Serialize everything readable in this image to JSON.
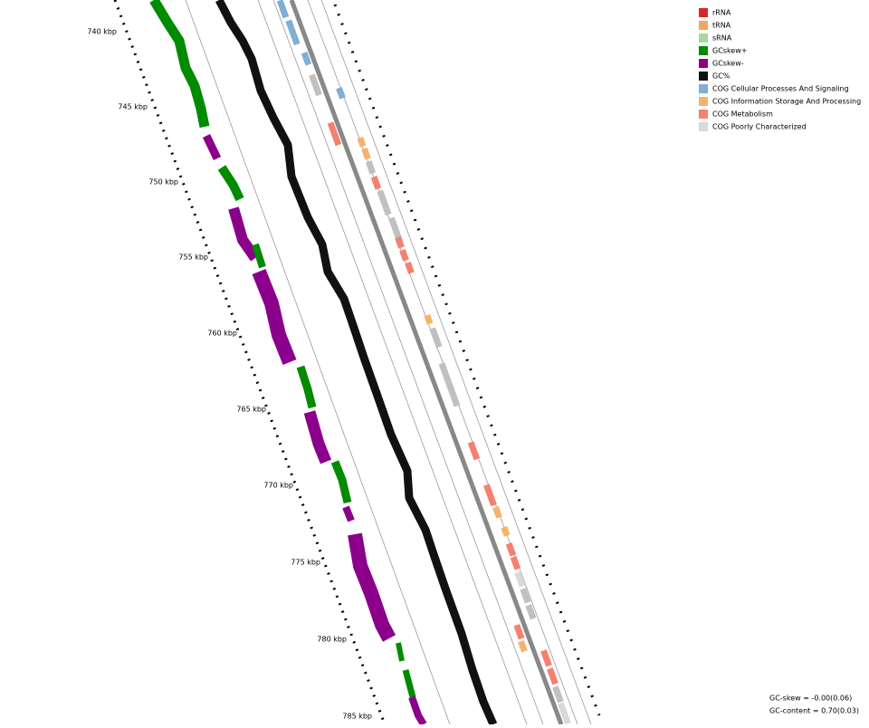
{
  "legend": [
    {
      "name": "rRNA",
      "color": "#d62728"
    },
    {
      "name": "tRNA",
      "color": "#f4a460"
    },
    {
      "name": "sRNA",
      "color": "#a8d8a0"
    },
    {
      "name": "GCskew+",
      "color": "#008b00"
    },
    {
      "name": "GCskew-",
      "color": "#8b008b"
    },
    {
      "name": "GC%",
      "color": "#111111"
    },
    {
      "name": "COG Cellular Processes And Signaling",
      "color": "#7fafd6"
    },
    {
      "name": "COG Information Storage And Processing",
      "color": "#f7b26a"
    },
    {
      "name": "COG Metabolism",
      "color": "#f58070"
    },
    {
      "name": "COG Poorly Characterized",
      "color": "#d9d9d9"
    }
  ],
  "ticks": [
    "740 kbp",
    "745 kbp",
    "750 kbp",
    "755 kbp",
    "760 kbp",
    "765 kbp",
    "770 kbp",
    "775 kbp",
    "780 kbp",
    "785 kbp"
  ],
  "footer": {
    "gc_skew": "GC-skew = -0.00(0.06)",
    "gc_content": "GC-content = 0.70(0.03)"
  }
}
